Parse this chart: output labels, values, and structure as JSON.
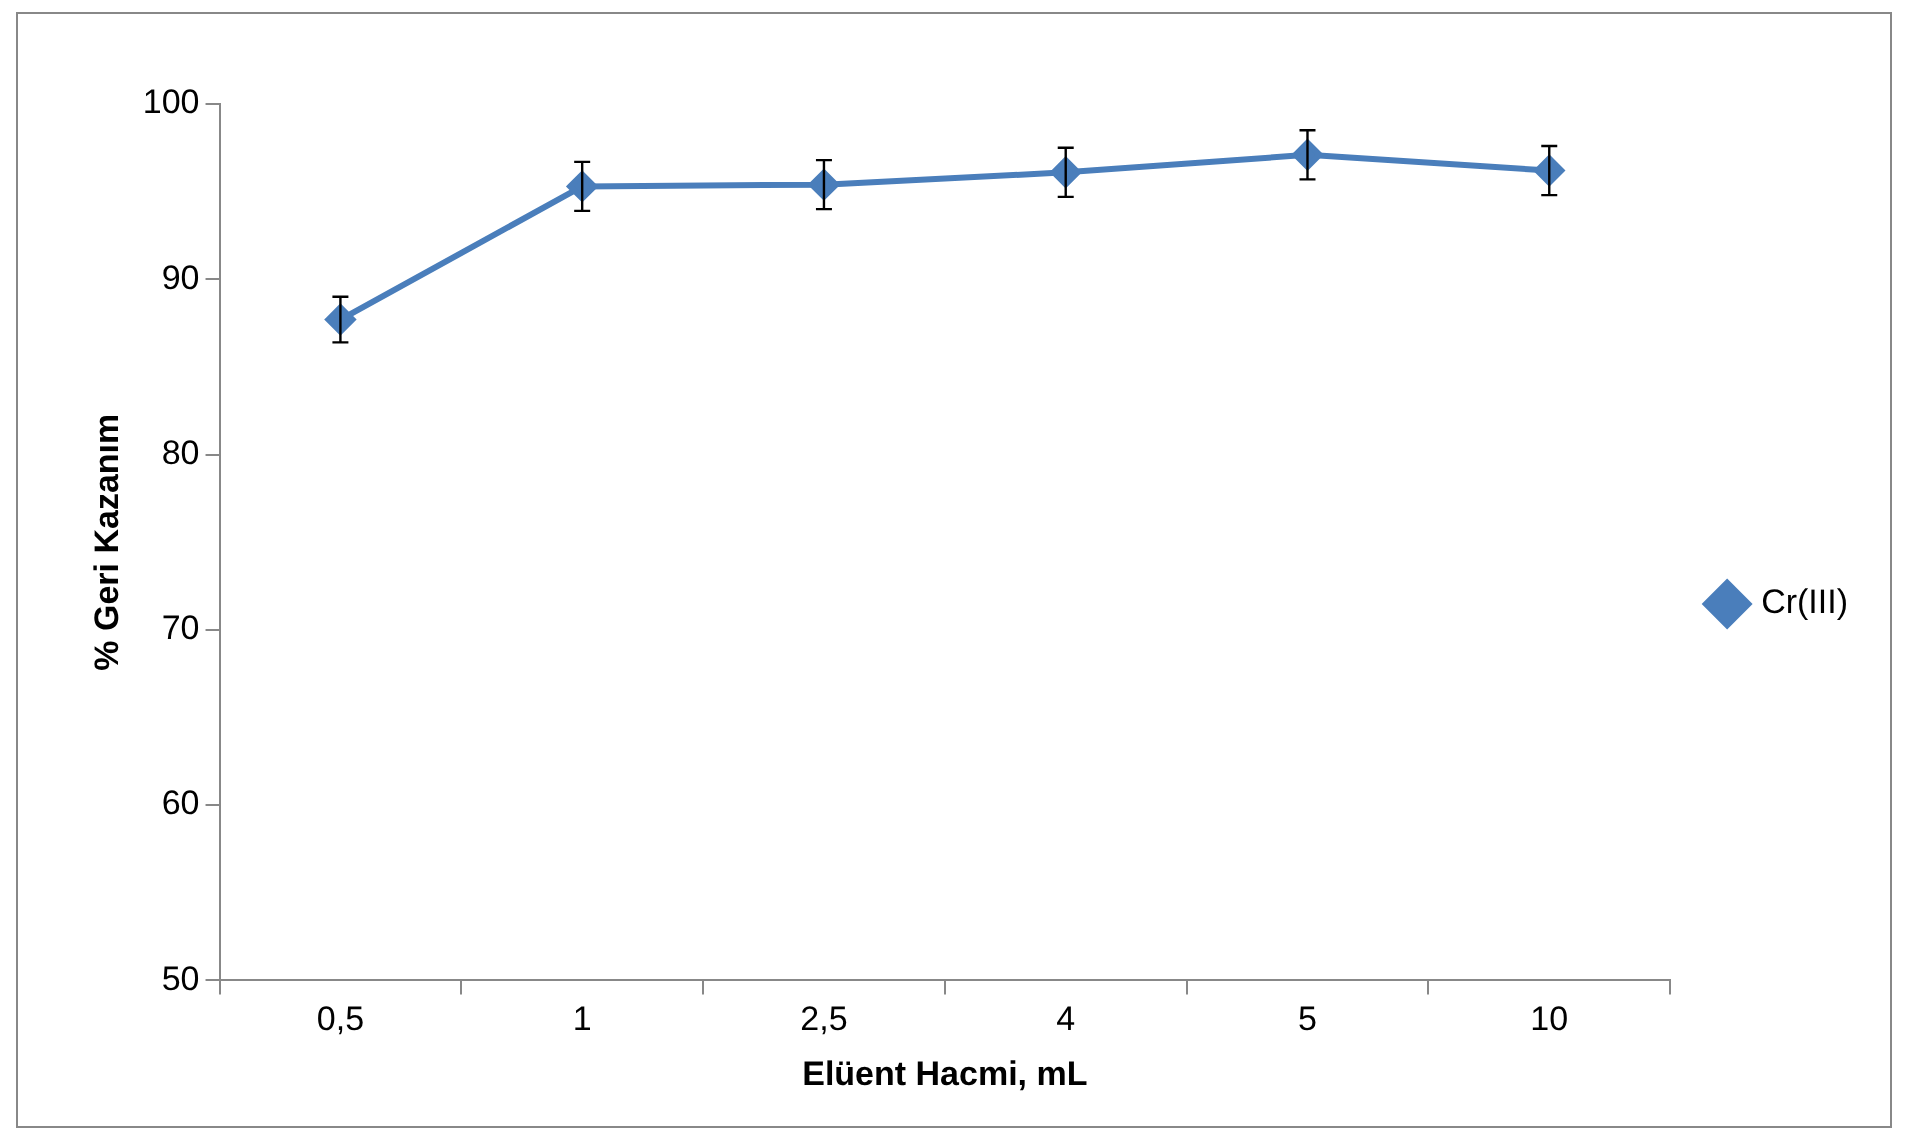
{
  "chart_data": {
    "type": "line",
    "xlabel": "Elüent Hacmi, mL",
    "ylabel": "% Geri Kazanım",
    "categories": [
      "0,5",
      "1",
      "2,5",
      "4",
      "5",
      "10"
    ],
    "series": [
      {
        "name": "Cr(III)",
        "color": "#4a7ebb",
        "values": [
          87.7,
          95.3,
          95.4,
          96.1,
          97.1,
          96.2
        ],
        "errors": [
          1.3,
          1.4,
          1.4,
          1.4,
          1.4,
          1.4
        ]
      }
    ],
    "ylim": [
      50,
      100
    ],
    "yticks": [
      50,
      60,
      70,
      80,
      90,
      100
    ],
    "grid": false,
    "legend": "right",
    "marker": "diamond",
    "line_style": "solid"
  }
}
